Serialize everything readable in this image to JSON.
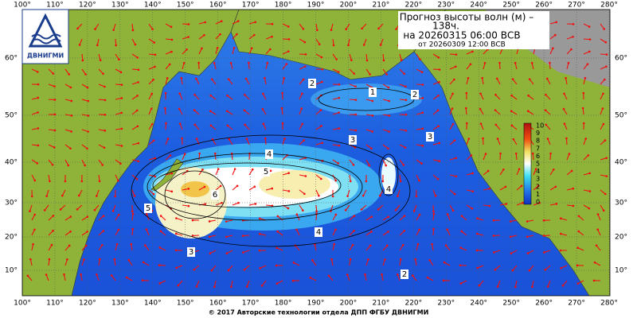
{
  "header": {
    "title_line1": "Прогноз высоты волн (м) –",
    "title_line2": "138ч.",
    "title_line3": "на 20260315 06:00 ВСВ",
    "title_line4": "от 20260309 12:00 ВСВ"
  },
  "logo": {
    "label": "ДВНИГМИ"
  },
  "footer": {
    "text": "© 2017 Авторские технологии отдела ДПП ФГБУ ДВНИГМИ"
  },
  "map": {
    "longitudes": [
      "100°",
      "110°",
      "120°",
      "130°",
      "140°",
      "150°",
      "160°",
      "170°",
      "180°",
      "190°",
      "200°",
      "210°",
      "220°",
      "230°",
      "240°",
      "250°",
      "260°",
      "270°",
      "280°"
    ],
    "latitudes": [
      "60°",
      "50°",
      "40°",
      "30°",
      "20°",
      "10°"
    ],
    "colorbar": [
      "10",
      "9",
      "8",
      "7",
      "6",
      "5",
      "4",
      "3",
      "2",
      "1",
      "0"
    ],
    "contour_labels": [
      "1",
      "2",
      "2",
      "3",
      "3",
      "4",
      "5",
      "6",
      "4",
      "3",
      "2",
      "5",
      "4"
    ]
  }
}
